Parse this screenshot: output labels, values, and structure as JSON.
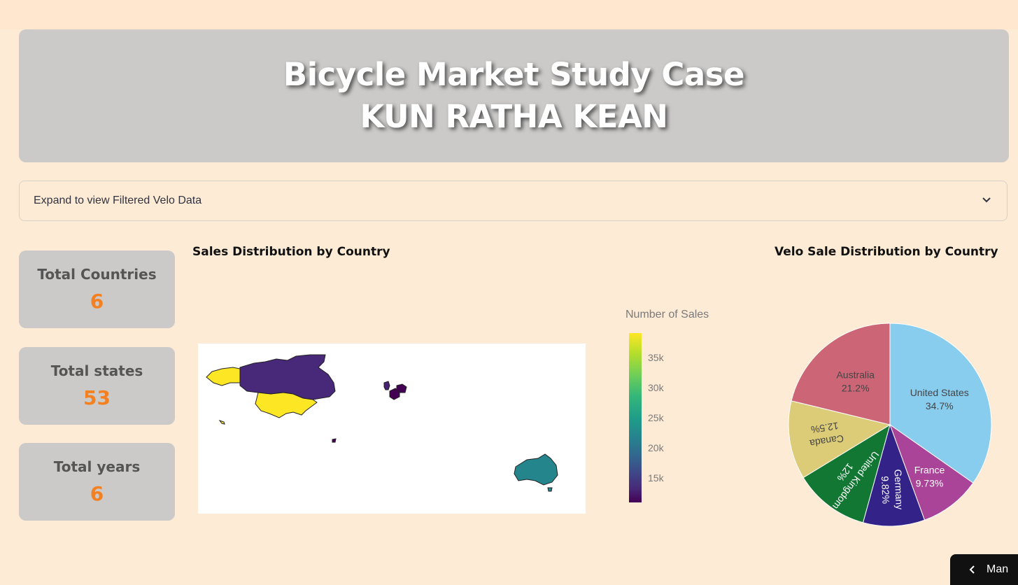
{
  "header": {
    "title": "Bicycle Market Study Case",
    "subtitle": "KUN RATHA KEAN"
  },
  "expander": {
    "label": "Expand to view Filtered Velo Data"
  },
  "kpis": [
    {
      "label": "Total Countries",
      "value": "6"
    },
    {
      "label": "Total states",
      "value": "53"
    },
    {
      "label": "Total years",
      "value": "6"
    }
  ],
  "map_title": "Sales Distribution by Country",
  "pie_title": "Velo Sale Distribution by Country",
  "bottom_button": {
    "label": "Man"
  },
  "colors": {
    "accent": "#f48020",
    "card": "#cbcac9",
    "background": "#fdebd6"
  },
  "chart_data": [
    {
      "type": "choropleth",
      "title": "Sales Distribution by Country",
      "colorbar_title": "Number of Sales",
      "colorscale": "viridis",
      "colorbar_ticks": [
        "35k",
        "30k",
        "25k",
        "20k",
        "15k"
      ],
      "colorbar_tick_values": [
        35000,
        30000,
        25000,
        20000,
        15000
      ],
      "range": [
        11000,
        39200
      ],
      "countries": [
        {
          "name": "United States",
          "value": 39200
        },
        {
          "name": "Australia",
          "value": 23900
        },
        {
          "name": "Canada",
          "value": 14100
        },
        {
          "name": "United Kingdom",
          "value": 13600
        },
        {
          "name": "Germany",
          "value": 11100
        },
        {
          "name": "France",
          "value": 11000
        }
      ]
    },
    {
      "type": "pie",
      "title": "Velo Sale Distribution by Country",
      "slices": [
        {
          "label": "United States",
          "value": 34.7,
          "text": "34.7%",
          "color": "#88ccee"
        },
        {
          "label": "France",
          "value": 9.73,
          "text": "9.73%",
          "color": "#aa4499"
        },
        {
          "label": "Germany",
          "value": 9.82,
          "text": "9.82%",
          "color": "#332288"
        },
        {
          "label": "United Kingdom",
          "value": 12,
          "text": "12%",
          "color": "#117733"
        },
        {
          "label": "Canada",
          "value": 12.5,
          "text": "12.5%",
          "color": "#ddcc77"
        },
        {
          "label": "Australia",
          "value": 21.2,
          "text": "21.2%",
          "color": "#cc6677"
        }
      ]
    }
  ]
}
